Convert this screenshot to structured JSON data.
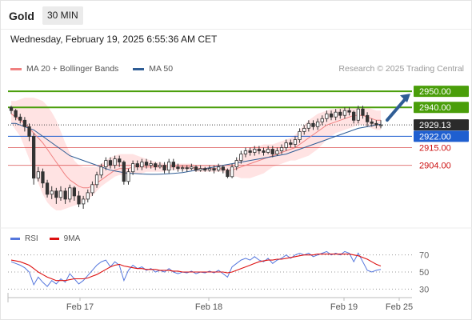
{
  "header": {
    "symbol": "Gold",
    "timeframe": "30 MIN",
    "datetime": "Wednesday, February 19, 2025 6:55:36 AM CET"
  },
  "legend": {
    "ma20_label": "MA 20 + Bollinger Bands",
    "ma50_label": "MA 50",
    "credit": "Research © 2025 Trading Central"
  },
  "rsi_legend": {
    "rsi_label": "RSI",
    "ma_label": "9MA"
  },
  "colors": {
    "up": "#3a3a3a",
    "ma20": "#f08080",
    "ma50": "#2f5d95",
    "band_fill": "#ffd9d9",
    "green_level": "#4a9e0a",
    "red_level": "#cc1111",
    "blue_level": "#1f5fd0",
    "rsi": "#5577dd",
    "rsi_ma": "#dd1111",
    "arrow": "#2f5d95"
  },
  "levels": [
    {
      "value": 2950.0,
      "label": "2950.00",
      "kind": "green"
    },
    {
      "value": 2940.0,
      "label": "2940.00",
      "kind": "green"
    },
    {
      "value": 2929.13,
      "label": "2929.13",
      "kind": "current"
    },
    {
      "value": 2922.0,
      "label": "2922.00",
      "kind": "blue"
    },
    {
      "value": 2915.0,
      "label": "2915.00",
      "kind": "red"
    },
    {
      "value": 2904.0,
      "label": "2904.00",
      "kind": "red"
    }
  ],
  "x_axis": {
    "labels": [
      "Feb 17",
      "Feb 18",
      "Feb 19",
      "Feb 25"
    ]
  },
  "rsi_axis": {
    "labels": [
      "70",
      "50",
      "30"
    ],
    "values": [
      70,
      50,
      30
    ]
  },
  "chart_data": {
    "type": "candlestick",
    "title": "Gold",
    "price_range": [
      2875,
      2957
    ],
    "candles": [
      [
        2940,
        2938,
        2941,
        2936
      ],
      [
        2938,
        2934,
        2939,
        2932
      ],
      [
        2934,
        2932,
        2936,
        2930
      ],
      [
        2932,
        2928,
        2934,
        2925
      ],
      [
        2928,
        2922,
        2930,
        2919
      ],
      [
        2922,
        2896,
        2924,
        2892
      ],
      [
        2896,
        2900,
        2903,
        2894
      ],
      [
        2900,
        2893,
        2902,
        2890
      ],
      [
        2893,
        2886,
        2895,
        2884
      ],
      [
        2886,
        2888,
        2891,
        2883
      ],
      [
        2888,
        2884,
        2890,
        2880
      ],
      [
        2884,
        2888,
        2891,
        2882
      ],
      [
        2888,
        2883,
        2890,
        2880
      ],
      [
        2883,
        2890,
        2892,
        2881
      ],
      [
        2890,
        2885,
        2891,
        2882
      ],
      [
        2885,
        2880,
        2888,
        2878
      ],
      [
        2880,
        2883,
        2885,
        2877
      ],
      [
        2883,
        2887,
        2889,
        2881
      ],
      [
        2887,
        2892,
        2894,
        2885
      ],
      [
        2892,
        2898,
        2900,
        2890
      ],
      [
        2898,
        2903,
        2905,
        2896
      ],
      [
        2903,
        2907,
        2909,
        2901
      ],
      [
        2907,
        2904,
        2909,
        2902
      ],
      [
        2904,
        2908,
        2910,
        2902
      ],
      [
        2908,
        2906,
        2910,
        2903
      ],
      [
        2906,
        2894,
        2907,
        2892
      ],
      [
        2894,
        2900,
        2902,
        2892
      ],
      [
        2900,
        2905,
        2907,
        2898
      ],
      [
        2905,
        2903,
        2907,
        2901
      ],
      [
        2903,
        2906,
        2908,
        2901
      ],
      [
        2906,
        2904,
        2908,
        2902
      ],
      [
        2904,
        2905,
        2907,
        2902
      ],
      [
        2905,
        2903,
        2906,
        2901
      ],
      [
        2903,
        2904,
        2906,
        2902
      ],
      [
        2904,
        2901,
        2906,
        2899
      ],
      [
        2901,
        2906,
        2908,
        2899
      ],
      [
        2906,
        2903,
        2908,
        2901
      ],
      [
        2903,
        2902,
        2905,
        2900
      ],
      [
        2902,
        2902.5,
        2904,
        2900
      ],
      [
        2902.5,
        2902,
        2904,
        2900
      ],
      [
        2902,
        2903,
        2905,
        2901
      ],
      [
        2903,
        2901,
        2904,
        2900
      ],
      [
        2901,
        2902,
        2904,
        2900
      ],
      [
        2902,
        2901,
        2903,
        2900
      ],
      [
        2901,
        2902,
        2904,
        2900
      ],
      [
        2902,
        2901,
        2904,
        2899
      ],
      [
        2901,
        2903,
        2905,
        2900
      ],
      [
        2903,
        2901,
        2904,
        2899
      ],
      [
        2901,
        2897,
        2902,
        2896
      ],
      [
        2897,
        2903,
        2905,
        2896
      ],
      [
        2903,
        2907,
        2909,
        2901
      ],
      [
        2907,
        2911,
        2913,
        2905
      ],
      [
        2911,
        2913,
        2915,
        2909
      ],
      [
        2913,
        2912,
        2915,
        2910
      ],
      [
        2912,
        2914,
        2916,
        2910
      ],
      [
        2914,
        2913,
        2916,
        2911
      ],
      [
        2913,
        2912,
        2915,
        2910
      ],
      [
        2912,
        2914,
        2916,
        2911
      ],
      [
        2914,
        2911,
        2916,
        2909
      ],
      [
        2911,
        2913,
        2915,
        2910
      ],
      [
        2913,
        2915,
        2917,
        2911
      ],
      [
        2915,
        2918,
        2920,
        2913
      ],
      [
        2918,
        2917,
        2920,
        2915
      ],
      [
        2917,
        2920,
        2922,
        2915
      ],
      [
        2920,
        2925,
        2927,
        2918
      ],
      [
        2925,
        2927,
        2929,
        2923
      ],
      [
        2927,
        2930,
        2932,
        2925
      ],
      [
        2930,
        2928,
        2932,
        2926
      ],
      [
        2928,
        2931,
        2933,
        2926
      ],
      [
        2931,
        2933,
        2935,
        2929
      ],
      [
        2933,
        2936,
        2938,
        2931
      ],
      [
        2936,
        2934,
        2938,
        2932
      ],
      [
        2934,
        2937,
        2939,
        2932
      ],
      [
        2937,
        2935,
        2939,
        2933
      ],
      [
        2935,
        2938,
        2940,
        2933
      ],
      [
        2938,
        2937,
        2940,
        2935
      ],
      [
        2937,
        2932,
        2938,
        2930
      ],
      [
        2932,
        2939,
        2941,
        2930
      ],
      [
        2939,
        2935,
        2941,
        2933
      ],
      [
        2935,
        2931,
        2937,
        2928
      ],
      [
        2931,
        2930,
        2933,
        2928
      ],
      [
        2930,
        2929,
        2932,
        2927
      ],
      [
        2929,
        2929.13,
        2932,
        2927
      ]
    ],
    "ma20": [
      2936,
      2934,
      2932,
      2930,
      2927,
      2924,
      2921,
      2918,
      2914,
      2910,
      2906,
      2902,
      2898,
      2895,
      2893,
      2891,
      2890,
      2890,
      2891,
      2893,
      2895,
      2897,
      2899,
      2901,
      2902,
      2902,
      2902,
      2903,
      2903,
      2903,
      2903,
      2903,
      2903,
      2903,
      2903,
      2903,
      2903,
      2903,
      2903,
      2903,
      2903,
      2902,
      2902,
      2902,
      2902,
      2902,
      2902,
      2902,
      2901,
      2901,
      2902,
      2903,
      2904,
      2905,
      2906,
      2907,
      2908,
      2909,
      2910,
      2911,
      2912,
      2913,
      2914,
      2915,
      2917,
      2919,
      2921,
      2923,
      2925,
      2927,
      2929,
      2930,
      2931,
      2932,
      2933,
      2934,
      2935,
      2935,
      2935,
      2934,
      2933,
      2932,
      2932
    ],
    "bb_upper": [
      2944,
      2944,
      2945,
      2946,
      2946,
      2946,
      2945,
      2944,
      2941,
      2937,
      2932,
      2925,
      2918,
      2912,
      2907,
      2904,
      2903,
      2903,
      2903,
      2903,
      2905,
      2907,
      2909,
      2910,
      2911,
      2911,
      2911,
      2911,
      2910,
      2909,
      2908,
      2907,
      2906,
      2906,
      2905,
      2905,
      2905,
      2905,
      2905,
      2905,
      2905,
      2904,
      2904,
      2904,
      2904,
      2904,
      2904,
      2904,
      2904,
      2905,
      2907,
      2910,
      2913,
      2915,
      2916,
      2916,
      2917,
      2917,
      2917,
      2918,
      2919,
      2920,
      2921,
      2923,
      2926,
      2929,
      2932,
      2934,
      2936,
      2937,
      2938,
      2939,
      2939,
      2940,
      2940,
      2940,
      2940,
      2940,
      2940,
      2940,
      2939,
      2938,
      2938
    ],
    "bb_lower": [
      2930,
      2926,
      2922,
      2915,
      2908,
      2900,
      2893,
      2886,
      2881,
      2878,
      2876,
      2876,
      2877,
      2878,
      2879,
      2880,
      2881,
      2883,
      2885,
      2888,
      2891,
      2893,
      2895,
      2897,
      2898,
      2898,
      2899,
      2899,
      2899,
      2899,
      2900,
      2900,
      2900,
      2900,
      2900,
      2901,
      2901,
      2901,
      2901,
      2901,
      2901,
      2900,
      2900,
      2900,
      2900,
      2900,
      2900,
      2900,
      2898,
      2897,
      2897,
      2896,
      2896,
      2896,
      2897,
      2898,
      2899,
      2901,
      2903,
      2904,
      2905,
      2906,
      2907,
      2907,
      2908,
      2909,
      2910,
      2912,
      2914,
      2917,
      2920,
      2922,
      2924,
      2925,
      2926,
      2927,
      2928,
      2929,
      2929,
      2928,
      2927,
      2926,
      2926
    ],
    "ma50": [
      2930,
      2930,
      2929,
      2928,
      2927,
      2926,
      2924,
      2922,
      2920,
      2918,
      2916,
      2914,
      2912,
      2910,
      2909,
      2908,
      2907,
      2906,
      2905,
      2904,
      2903,
      2902,
      2901,
      2900.5,
      2900,
      2899.5,
      2899,
      2899,
      2898.8,
      2898.6,
      2898.5,
      2898.4,
      2898.4,
      2898.5,
      2898.6,
      2898.8,
      2899,
      2899.2,
      2899.5,
      2900,
      2900.5,
      2901,
      2901.5,
      2902,
      2902.5,
      2903,
      2903.5,
      2904,
      2904.5,
      2905,
      2905.5,
      2906,
      2906.5,
      2907,
      2907.5,
      2908,
      2908.5,
      2909,
      2909.5,
      2910,
      2910.5,
      2911,
      2912,
      2913,
      2914,
      2915,
      2916,
      2917,
      2918,
      2919,
      2920,
      2921,
      2922,
      2923,
      2924,
      2925,
      2926,
      2927,
      2927.5,
      2928,
      2928.5,
      2929,
      2929.5
    ],
    "rsi": [
      62,
      60,
      58,
      55,
      50,
      35,
      44,
      38,
      33,
      40,
      36,
      42,
      38,
      48,
      42,
      36,
      40,
      46,
      52,
      58,
      62,
      64,
      56,
      62,
      58,
      40,
      52,
      58,
      54,
      56,
      52,
      54,
      50,
      52,
      50,
      54,
      50,
      48,
      50,
      49,
      51,
      48,
      50,
      49,
      51,
      49,
      52,
      48,
      44,
      56,
      60,
      64,
      66,
      64,
      68,
      64,
      62,
      66,
      60,
      64,
      66,
      70,
      66,
      70,
      72,
      70,
      72,
      68,
      70,
      72,
      74,
      70,
      72,
      70,
      74,
      72,
      62,
      72,
      62,
      52,
      50,
      52,
      53
    ],
    "rsi_ma": [
      64,
      63,
      62,
      60,
      58,
      54,
      50,
      47,
      44,
      42,
      40,
      40,
      40,
      41,
      42,
      42,
      42,
      43,
      45,
      47,
      50,
      53,
      56,
      58,
      59,
      57,
      56,
      55,
      54,
      54,
      53,
      53,
      53,
      52,
      52,
      52,
      51,
      51,
      50,
      50,
      50,
      50,
      50,
      50,
      50,
      50,
      50,
      50,
      49,
      50,
      52,
      54,
      56,
      58,
      60,
      62,
      63,
      64,
      64,
      65,
      65,
      66,
      67,
      68,
      69,
      70,
      70,
      70,
      71,
      71,
      71,
      71,
      71,
      71,
      71,
      71,
      70,
      69,
      67,
      65,
      62,
      59,
      57
    ],
    "rsi_range": [
      20,
      80
    ]
  }
}
